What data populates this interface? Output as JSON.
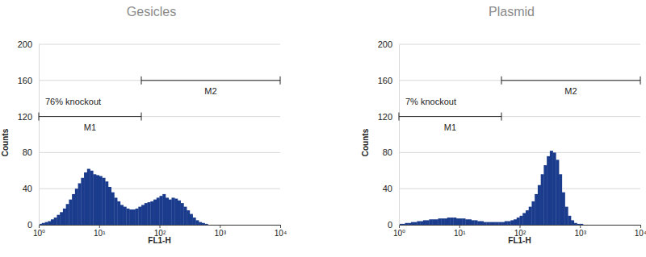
{
  "chart_data": [
    {
      "type": "histogram",
      "title": "Gesicles",
      "x_label": "FL1-H",
      "y_label": "Counts",
      "color": "#1b3c8c",
      "log": "x",
      "grid": true,
      "xlim": [
        1,
        10000
      ],
      "xticks": [
        {
          "value": 1,
          "label": "10⁰"
        },
        {
          "value": 10,
          "label": "10¹"
        },
        {
          "value": 100,
          "label": "10²"
        },
        {
          "value": 1000,
          "label": "10³"
        },
        {
          "value": 10000,
          "label": "10⁴"
        }
      ],
      "ylim": [
        0,
        200
      ],
      "yticks": [
        0,
        40,
        80,
        120,
        160,
        200
      ],
      "annotation": "76% knockout",
      "markers": [
        {
          "label": "M1",
          "x": [
            1,
            50
          ],
          "y": 120
        },
        {
          "label": "M2",
          "x": [
            50,
            10000
          ],
          "y": 160
        }
      ],
      "bins": [
        1,
        1.122,
        1.259,
        1.413,
        1.585,
        1.778,
        1.995,
        2.239,
        2.512,
        2.818,
        3.162,
        3.548,
        3.981,
        4.467,
        5.012,
        5.623,
        6.31,
        7.079,
        7.943,
        8.913,
        10,
        11.22,
        12.59,
        14.13,
        15.85,
        17.78,
        19.95,
        22.39,
        25.12,
        28.18,
        31.62,
        35.48,
        39.81,
        44.67,
        50.12,
        56.23,
        63.1,
        70.79,
        79.43,
        89.13,
        100,
        112.2,
        125.9,
        141.3,
        158.5,
        177.8,
        199.5,
        223.9,
        251.2,
        281.8,
        316.2,
        354.8,
        398.1,
        446.7,
        501.2,
        562.3,
        631,
        707.9,
        794.3,
        891.3,
        1000,
        1122,
        1259,
        1413,
        1585,
        1778,
        1995,
        2239,
        2512,
        2818,
        3162,
        3548,
        3981,
        4467,
        5012,
        5623,
        6310,
        7079,
        7943,
        8913,
        10000
      ],
      "counts": [
        1,
        2,
        3,
        4,
        6,
        8,
        11,
        14,
        18,
        23,
        28,
        34,
        40,
        46,
        52,
        58,
        62,
        60,
        56,
        55,
        54,
        52,
        48,
        42,
        36,
        30,
        26,
        22,
        20,
        18,
        17,
        17,
        18,
        20,
        22,
        24,
        25,
        26,
        28,
        30,
        32,
        34,
        30,
        28,
        30,
        29,
        27,
        24,
        20,
        16,
        12,
        8,
        5,
        3,
        2,
        1,
        0,
        0,
        0,
        0,
        0,
        0,
        0,
        0,
        0,
        0,
        0,
        0,
        0,
        0,
        0,
        0,
        0,
        0,
        0,
        0,
        0,
        0,
        0,
        0
      ]
    },
    {
      "type": "histogram",
      "title": "Plasmid",
      "x_label": "FL1-H",
      "y_label": "Counts",
      "color": "#1b3c8c",
      "log": "x",
      "grid": true,
      "xlim": [
        1,
        10000
      ],
      "xticks": [
        {
          "value": 1,
          "label": "10⁰"
        },
        {
          "value": 10,
          "label": "10¹"
        },
        {
          "value": 100,
          "label": "10²"
        },
        {
          "value": 1000,
          "label": "10³"
        },
        {
          "value": 10000,
          "label": "10⁴"
        }
      ],
      "ylim": [
        0,
        200
      ],
      "yticks": [
        0,
        40,
        80,
        120,
        160,
        200
      ],
      "annotation": "7% knockout",
      "markers": [
        {
          "label": "M1",
          "x": [
            1,
            50
          ],
          "y": 120
        },
        {
          "label": "M2",
          "x": [
            50,
            10000
          ],
          "y": 160
        }
      ],
      "bins": [
        1,
        1.122,
        1.259,
        1.413,
        1.585,
        1.778,
        1.995,
        2.239,
        2.512,
        2.818,
        3.162,
        3.548,
        3.981,
        4.467,
        5.012,
        5.623,
        6.31,
        7.079,
        7.943,
        8.913,
        10,
        11.22,
        12.59,
        14.13,
        15.85,
        17.78,
        19.95,
        22.39,
        25.12,
        28.18,
        31.62,
        35.48,
        39.81,
        44.67,
        50.12,
        56.23,
        63.1,
        70.79,
        79.43,
        89.13,
        100,
        112.2,
        125.9,
        141.3,
        158.5,
        177.8,
        199.5,
        223.9,
        251.2,
        281.8,
        316.2,
        354.8,
        398.1,
        446.7,
        501.2,
        562.3,
        631,
        707.9,
        794.3,
        891.3,
        1000,
        1122,
        1259,
        1413,
        1585,
        1778,
        1995,
        2239,
        2512,
        2818,
        3162,
        3548,
        3981,
        4467,
        5012,
        5623,
        6310,
        7079,
        7943,
        8913,
        10000
      ],
      "counts": [
        1,
        1,
        2,
        2,
        3,
        3,
        4,
        4,
        5,
        5,
        6,
        6,
        6,
        7,
        7,
        7,
        8,
        8,
        8,
        7,
        7,
        7,
        6,
        6,
        5,
        5,
        4,
        4,
        3,
        3,
        3,
        3,
        3,
        3,
        3,
        4,
        4,
        5,
        6,
        8,
        10,
        13,
        16,
        20,
        26,
        34,
        44,
        56,
        66,
        76,
        82,
        80,
        72,
        56,
        36,
        20,
        10,
        5,
        2,
        1,
        1,
        0,
        0,
        0,
        0,
        0,
        0,
        0,
        0,
        0,
        0,
        0,
        0,
        0,
        0,
        0,
        0,
        0,
        0,
        0
      ]
    }
  ]
}
